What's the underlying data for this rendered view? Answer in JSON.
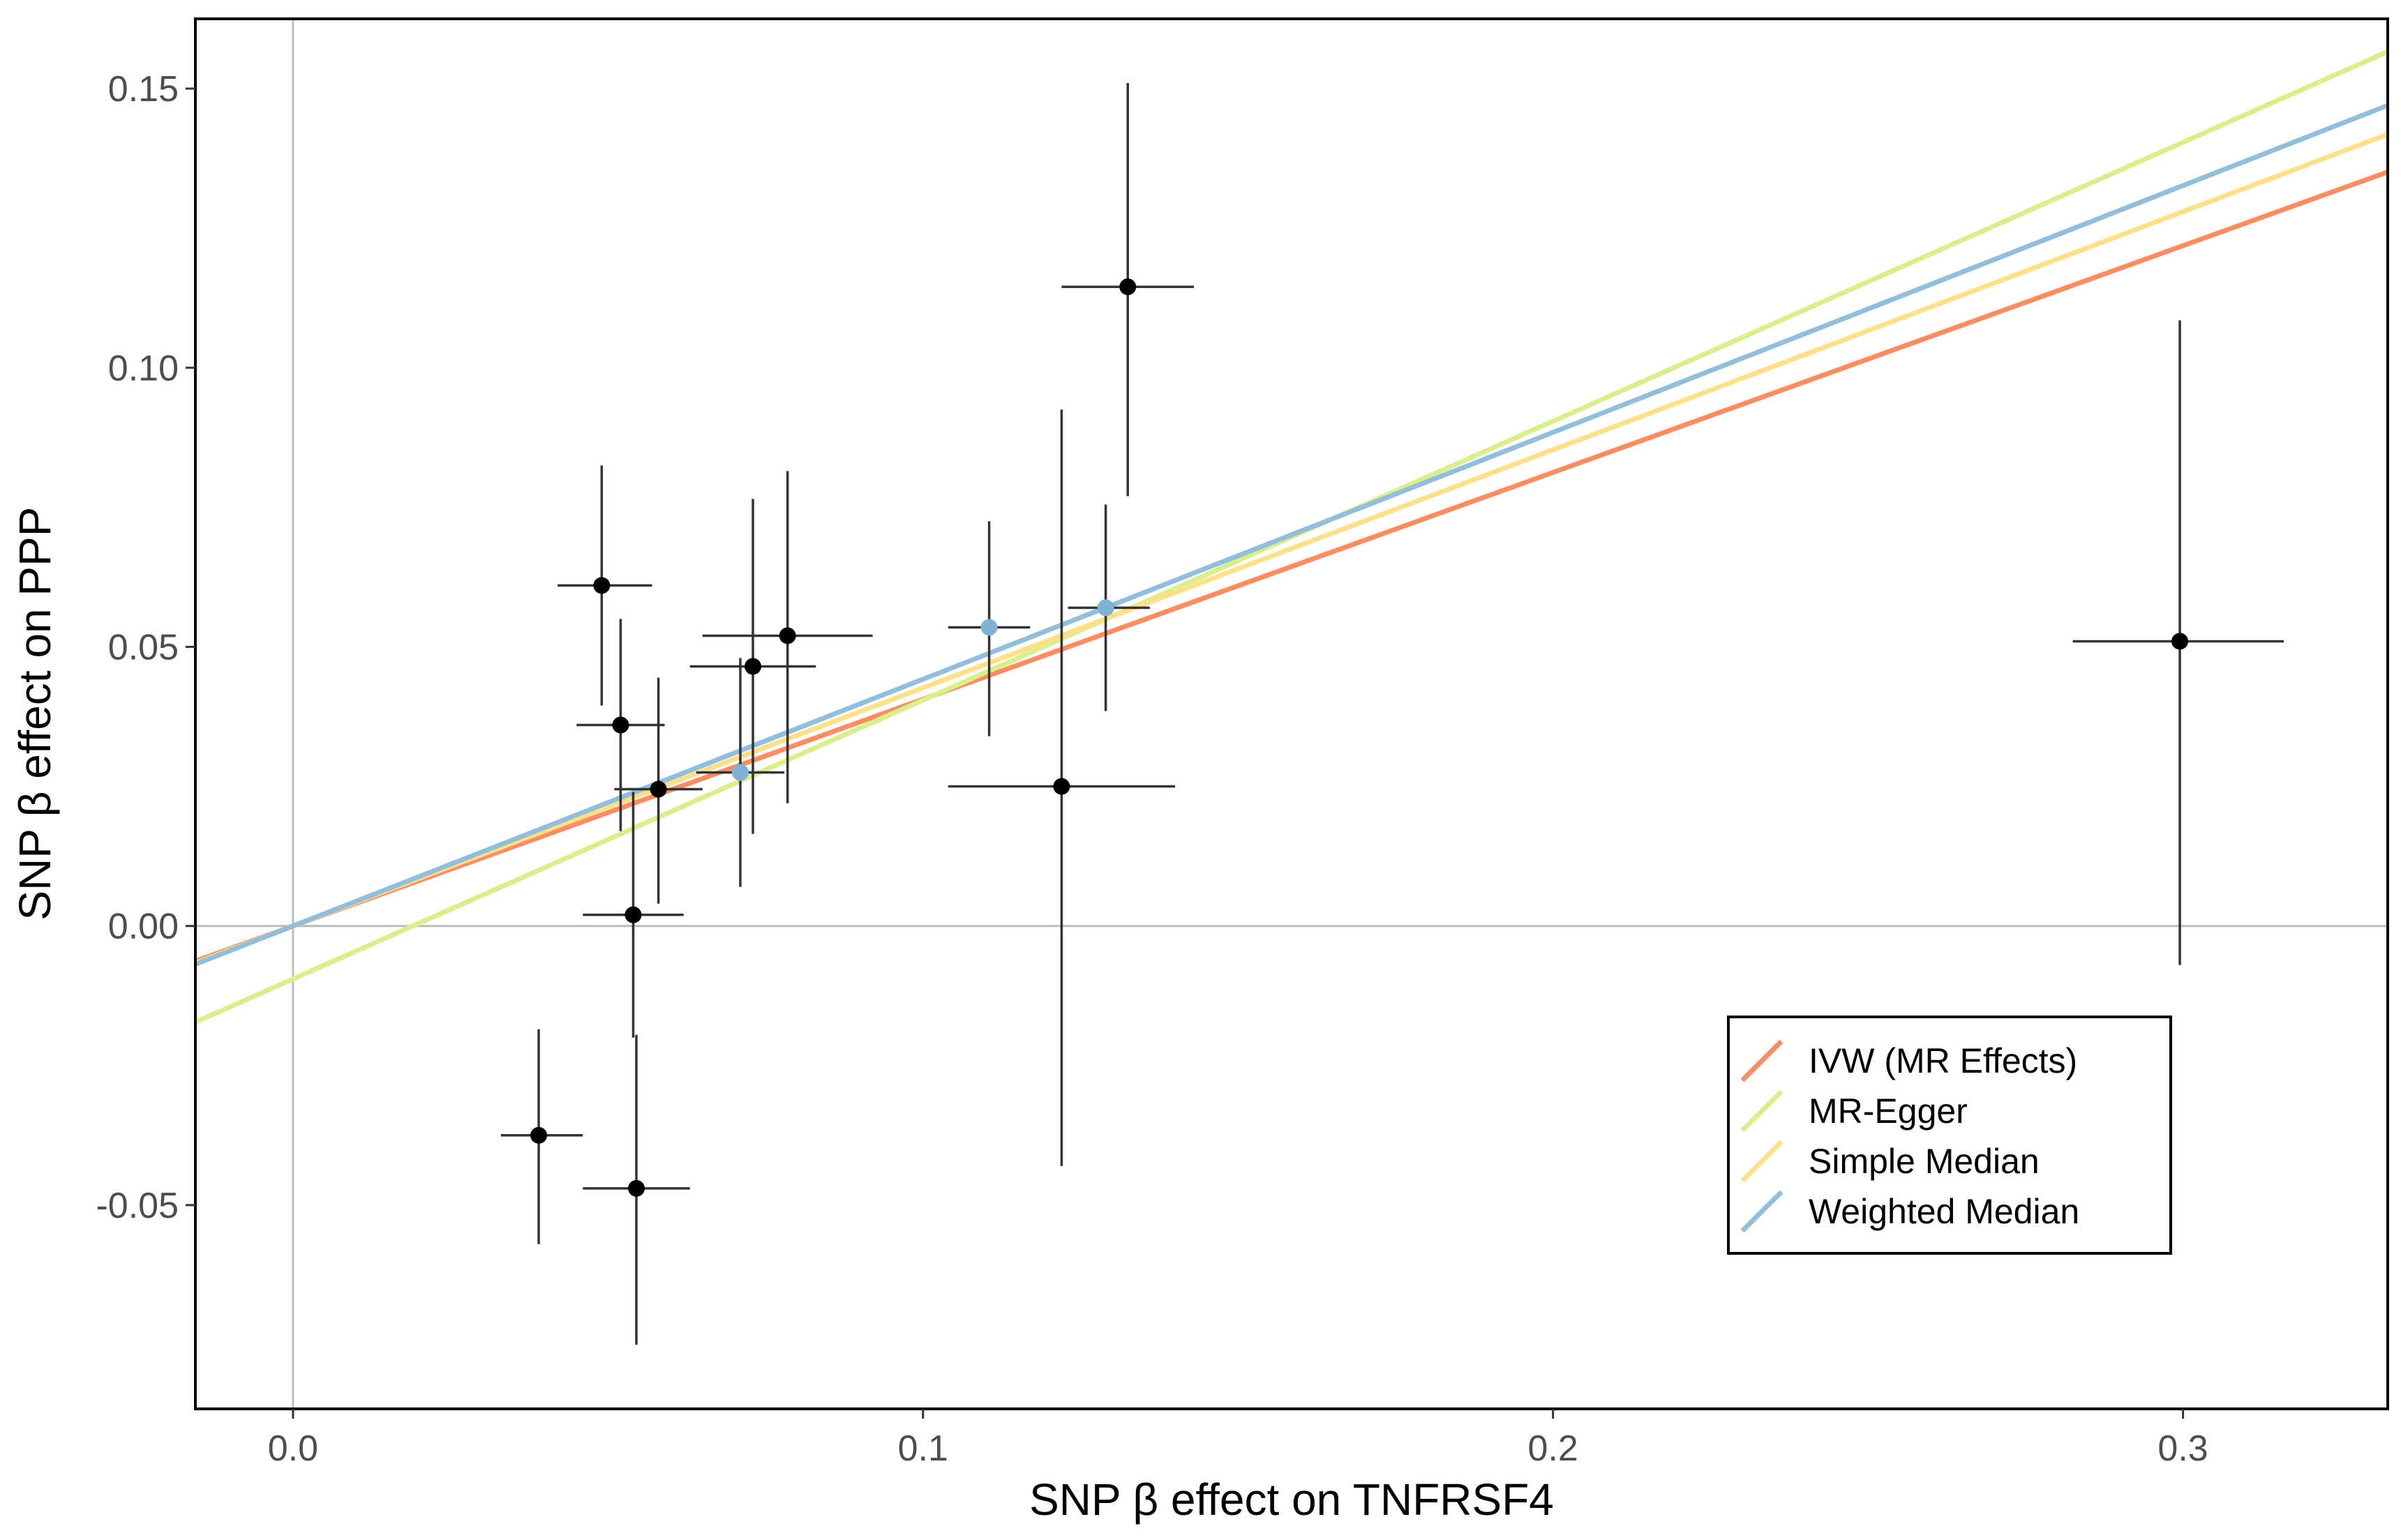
{
  "chart_data": {
    "type": "scatter",
    "title": "",
    "xlabel": "SNP β effect on TNFRSF4",
    "ylabel": "SNP β effect on PPP",
    "xlim": [
      -0.0155,
      0.3325
    ],
    "ylim": [
      -0.0865,
      0.1625
    ],
    "xticks": [
      0.0,
      0.1,
      0.2,
      0.3
    ],
    "xtick_labels": [
      "0.0",
      "0.1",
      "0.2",
      "0.3"
    ],
    "yticks": [
      -0.05,
      0.0,
      0.05,
      0.1,
      0.15
    ],
    "ytick_labels": [
      "-0.05",
      "0.00",
      "0.05",
      "0.10",
      "0.15"
    ],
    "reference_lines": {
      "x": 0.0,
      "y": 0.0,
      "color": "#bdbdbd"
    },
    "grid": false,
    "legend_position": "bottom-right",
    "points": [
      {
        "x": 0.039,
        "y": -0.0375,
        "x_lo": 0.033,
        "x_hi": 0.046,
        "y_lo": -0.057,
        "y_hi": -0.0185,
        "color": "#000000"
      },
      {
        "x": 0.049,
        "y": 0.061,
        "x_lo": 0.042,
        "x_hi": 0.057,
        "y_lo": 0.0395,
        "y_hi": 0.0825,
        "color": "#000000"
      },
      {
        "x": 0.052,
        "y": 0.036,
        "x_lo": 0.045,
        "x_hi": 0.059,
        "y_lo": 0.017,
        "y_hi": 0.055,
        "color": "#000000"
      },
      {
        "x": 0.054,
        "y": 0.002,
        "x_lo": 0.046,
        "x_hi": 0.062,
        "y_lo": -0.02,
        "y_hi": 0.024,
        "color": "#000000"
      },
      {
        "x": 0.0545,
        "y": -0.047,
        "x_lo": 0.046,
        "x_hi": 0.063,
        "y_lo": -0.075,
        "y_hi": -0.0195,
        "color": "#000000"
      },
      {
        "x": 0.058,
        "y": 0.0245,
        "x_lo": 0.051,
        "x_hi": 0.065,
        "y_lo": 0.004,
        "y_hi": 0.0445,
        "color": "#000000"
      },
      {
        "x": 0.071,
        "y": 0.0275,
        "x_lo": 0.064,
        "x_hi": 0.078,
        "y_lo": 0.007,
        "y_hi": 0.048,
        "color": "#7fb3d5"
      },
      {
        "x": 0.073,
        "y": 0.0465,
        "x_lo": 0.063,
        "x_hi": 0.083,
        "y_lo": 0.0165,
        "y_hi": 0.0765,
        "color": "#000000"
      },
      {
        "x": 0.0785,
        "y": 0.052,
        "x_lo": 0.065,
        "x_hi": 0.092,
        "y_lo": 0.022,
        "y_hi": 0.0815,
        "color": "#000000"
      },
      {
        "x": 0.1105,
        "y": 0.0535,
        "x_lo": 0.104,
        "x_hi": 0.117,
        "y_lo": 0.034,
        "y_hi": 0.0725,
        "color": "#7fb3d5"
      },
      {
        "x": 0.122,
        "y": 0.025,
        "x_lo": 0.104,
        "x_hi": 0.14,
        "y_lo": -0.043,
        "y_hi": 0.0925,
        "color": "#000000"
      },
      {
        "x": 0.129,
        "y": 0.057,
        "x_lo": 0.123,
        "x_hi": 0.136,
        "y_lo": 0.0385,
        "y_hi": 0.0755,
        "color": "#7fb3d5"
      },
      {
        "x": 0.1325,
        "y": 0.1145,
        "x_lo": 0.122,
        "x_hi": 0.143,
        "y_lo": 0.077,
        "y_hi": 0.151,
        "color": "#000000"
      },
      {
        "x": 0.2995,
        "y": 0.051,
        "x_lo": 0.2825,
        "x_hi": 0.316,
        "y_lo": -0.007,
        "y_hi": 0.1085,
        "color": "#000000"
      }
    ],
    "series": [
      {
        "name": "IVW (MR Effects)",
        "type": "line",
        "color": "#fc8d62",
        "intercept": 0.0,
        "slope": 0.4062
      },
      {
        "name": "MR-Egger",
        "type": "line",
        "color": "#d9ef8b",
        "intercept": -0.0095,
        "slope": 0.4996
      },
      {
        "name": "Simple Median",
        "type": "line",
        "color": "#fee08b",
        "intercept": 0.0,
        "slope": 0.4265
      },
      {
        "name": "Weighted Median",
        "type": "line",
        "color": "#91bfdb",
        "intercept": 0.0,
        "slope": 0.4421
      }
    ]
  }
}
